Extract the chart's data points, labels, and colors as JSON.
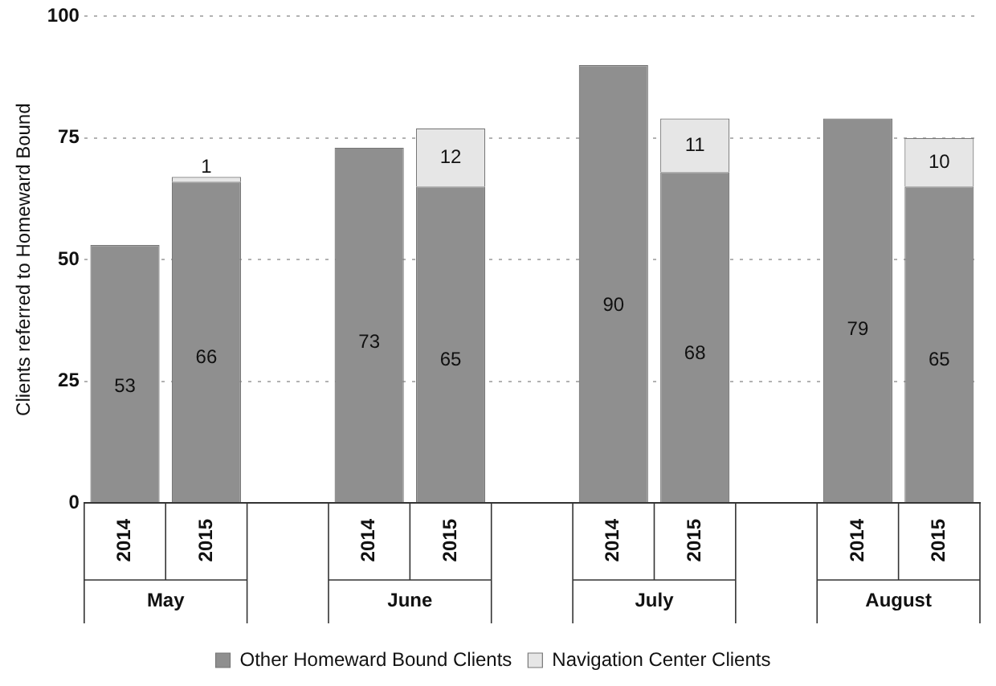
{
  "chart_data": {
    "type": "bar",
    "stacked": true,
    "ylabel": "Clients referred to Homeward Bound",
    "categories": [
      "2014",
      "2015",
      null,
      "2014",
      "2015",
      null,
      "2014",
      "2015",
      null,
      "2014",
      "2015"
    ],
    "series": [
      {
        "name": "Other Homeward Bound Clients",
        "color": "#8f8f8f",
        "values": [
          53,
          66,
          null,
          73,
          65,
          null,
          90,
          68,
          null,
          79,
          65
        ]
      },
      {
        "name": "Navigation Center Clients",
        "color": "#e6e6e6",
        "values": [
          null,
          1,
          null,
          null,
          12,
          null,
          null,
          11,
          null,
          null,
          10
        ]
      }
    ],
    "annotations": [
      "May",
      "June",
      "July",
      "August"
    ],
    "ylim": [
      0,
      100
    ],
    "yticks": [
      0,
      25,
      50,
      75,
      100
    ],
    "grid": "y",
    "legend": "bottom",
    "data_labels": true
  }
}
